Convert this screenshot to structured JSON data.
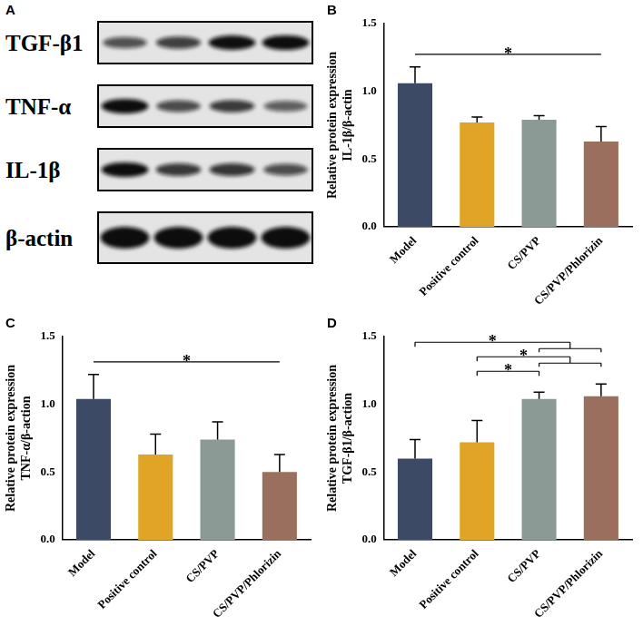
{
  "blot": {
    "title": "A",
    "rows": [
      "TGF-β1",
      "TNF-α",
      "IL-1β",
      "β-actin"
    ]
  },
  "chart_data": [
    {
      "type": "bar",
      "title": "B",
      "y_label": [
        "Relative protein expression",
        "IL-1β/β-actin"
      ],
      "categories": [
        "Model",
        "Positive control",
        "CS/PVP",
        "CS/PVP/Phlorizin"
      ],
      "values": [
        1.06,
        0.77,
        0.79,
        0.63
      ],
      "errors": [
        0.12,
        0.04,
        0.03,
        0.11
      ],
      "colors": [
        "#3c4a66",
        "#e0a526",
        "#8b9a95",
        "#9b6f5e"
      ],
      "ylim": [
        0,
        1.5
      ],
      "yticks": [
        {
          "value": 0,
          "label": "0.0"
        },
        0.5,
        {
          "value": 1,
          "label": "1.0"
        },
        1.5
      ],
      "grid": false,
      "annotations": [
        {
          "from": "Model",
          "to": "CS/PVP/Phlorizin",
          "label": "*"
        }
      ]
    },
    {
      "type": "bar",
      "title": "C",
      "y_label": [
        "Relative protein expression",
        "TNF-α/β-action"
      ],
      "categories": [
        "Model",
        "Positive control",
        "CS/PVP",
        "CS/PVP/Phlorizin"
      ],
      "values": [
        1.04,
        0.63,
        0.74,
        0.5
      ],
      "errors": [
        0.18,
        0.15,
        0.13,
        0.13
      ],
      "colors": [
        "#3c4a66",
        "#e0a526",
        "#8b9a95",
        "#9b6f5e"
      ],
      "ylim": [
        0,
        1.5
      ],
      "yticks": [
        {
          "value": 0,
          "label": "0.0"
        },
        0.5,
        {
          "value": 1,
          "label": "1.0"
        },
        1.5
      ],
      "grid": false,
      "annotations": [
        {
          "from": "Model",
          "to": "CS/PVP/Phlorizin",
          "label": "*"
        }
      ]
    },
    {
      "type": "bar",
      "title": "D",
      "y_label": [
        "Relative protein expression",
        "TGF-β1/β-action"
      ],
      "categories": [
        "Model",
        "Positive control",
        "CS/PVP",
        "CS/PVP/Phlorizin"
      ],
      "values": [
        0.6,
        0.72,
        1.04,
        1.06
      ],
      "errors": [
        0.14,
        0.16,
        0.05,
        0.09
      ],
      "colors": [
        "#3c4a66",
        "#e0a526",
        "#8b9a95",
        "#9b6f5e"
      ],
      "ylim": [
        0,
        1.5
      ],
      "yticks": [
        {
          "value": 0,
          "label": "0.0"
        },
        0.5,
        {
          "value": 1,
          "label": "1.0"
        },
        1.5
      ],
      "grid": false,
      "annotations": [
        {
          "from": "Positive control",
          "to": "CS/PVP",
          "label": "*"
        },
        {
          "from": "Positive control",
          "to": [
            "CS/PVP",
            "CS/PVP/Phlorizin"
          ],
          "label": "*"
        },
        {
          "from": "Model",
          "to": [
            "CS/PVP",
            "CS/PVP/Phlorizin"
          ],
          "label": "*"
        }
      ]
    }
  ]
}
